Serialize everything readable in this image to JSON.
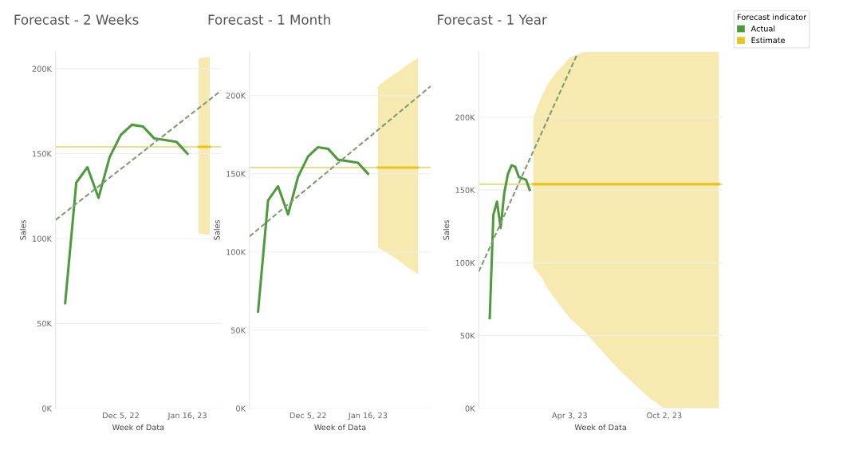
{
  "chart_data": [
    {
      "type": "line",
      "title": "Forecast - 2 Weeks",
      "xlabel": "Week of Data",
      "ylabel": "Sales",
      "xlim": [
        "2022-10-25",
        "2023-02-06"
      ],
      "xticks": [
        {
          "value": "2022-12-05",
          "label": "Dec 5, 22"
        },
        {
          "value": "2023-01-16",
          "label": "Jan 16, 23"
        }
      ],
      "ylim": [
        0,
        210000
      ],
      "yticks": [
        {
          "value": 0,
          "label": "0K"
        },
        {
          "value": 50000,
          "label": "50K"
        },
        {
          "value": 100000,
          "label": "100K"
        },
        {
          "value": 150000,
          "label": "150K"
        },
        {
          "value": 200000,
          "label": "200K"
        }
      ],
      "grid": "y",
      "ref_lines": [
        {
          "axis": "y",
          "value": 154000,
          "color": "#dfe38e"
        }
      ],
      "series": [
        {
          "color": "#4f9a3d",
          "x": [
            "2022-10-31",
            "2022-11-07",
            "2022-11-14",
            "2022-11-21",
            "2022-11-28",
            "2022-12-05",
            "2022-12-12",
            "2022-12-19",
            "2022-12-26",
            "2023-01-02",
            "2023-01-09",
            "2023-01-16"
          ],
          "values": [
            62000,
            133000,
            142000,
            124000,
            148000,
            161000,
            167000,
            166000,
            159000,
            158000,
            157000,
            150000
          ]
        },
        {
          "color": "#e8c420",
          "x": [
            "2023-01-23",
            "2023-01-30"
          ],
          "values": [
            154000,
            154000
          ],
          "lower": [
            103000,
            102000
          ],
          "upper": [
            206000,
            207000
          ]
        },
        {
          "type": "line",
          "color": "#7f9a72",
          "line_style": "dashed",
          "x": [
            "2022-10-25",
            "2023-02-06"
          ],
          "values": [
            111000,
            187000
          ]
        }
      ]
    },
    {
      "type": "line",
      "title": "Forecast - 1 Month",
      "xlabel": "Week of Data",
      "ylabel": "Sales",
      "xlim": [
        "2022-10-25",
        "2023-03-01"
      ],
      "xticks": [
        {
          "value": "2022-12-05",
          "label": "Dec 5, 22"
        },
        {
          "value": "2023-01-16",
          "label": "Jan 16, 23"
        }
      ],
      "ylim": [
        0,
        228000
      ],
      "yticks": [
        {
          "value": 0,
          "label": "0K"
        },
        {
          "value": 50000,
          "label": "50K"
        },
        {
          "value": 100000,
          "label": "100K"
        },
        {
          "value": 150000,
          "label": "150K"
        },
        {
          "value": 200000,
          "label": "200K"
        }
      ],
      "grid": "y",
      "ref_lines": [
        {
          "axis": "y",
          "value": 154000,
          "color": "#dfe38e"
        }
      ],
      "series": [
        {
          "color": "#4f9a3d",
          "x": [
            "2022-10-31",
            "2022-11-07",
            "2022-11-14",
            "2022-11-21",
            "2022-11-28",
            "2022-12-05",
            "2022-12-12",
            "2022-12-19",
            "2022-12-26",
            "2023-01-02",
            "2023-01-09",
            "2023-01-16"
          ],
          "values": [
            62000,
            133000,
            142000,
            124000,
            148000,
            161000,
            167000,
            166000,
            159000,
            158000,
            157000,
            150000
          ]
        },
        {
          "color": "#e8c420",
          "x": [
            "2023-01-23",
            "2023-01-30",
            "2023-02-06",
            "2023-02-13",
            "2023-02-20"
          ],
          "values": [
            154000,
            154000,
            154000,
            154000,
            154000
          ],
          "lower": [
            103000,
            99000,
            95000,
            90000,
            86000
          ],
          "upper": [
            206000,
            211000,
            215000,
            220000,
            224000
          ]
        },
        {
          "type": "line",
          "color": "#7f9a72",
          "line_style": "dashed",
          "x": [
            "2022-10-25",
            "2023-03-01"
          ],
          "values": [
            110000,
            206000
          ]
        }
      ]
    },
    {
      "type": "line",
      "title": "Forecast - 1 Year",
      "xlabel": "Week of Data",
      "ylabel": "Sales",
      "xlim": [
        "2022-10-10",
        "2024-01-22"
      ],
      "xticks": [
        {
          "value": "2023-04-03",
          "label": "Apr 3, 23"
        },
        {
          "value": "2023-10-02",
          "label": "Oct 2, 23"
        }
      ],
      "ylim": [
        0,
        245000
      ],
      "yticks": [
        {
          "value": 0,
          "label": "0K"
        },
        {
          "value": 50000,
          "label": "50K"
        },
        {
          "value": 100000,
          "label": "100K"
        },
        {
          "value": 150000,
          "label": "150K"
        },
        {
          "value": 200000,
          "label": "200K"
        }
      ],
      "grid": "y",
      "legend": "right",
      "legend_title": "Forecast indicator",
      "ref_lines": [
        {
          "axis": "y",
          "value": 154000,
          "color": "#dfe38e"
        }
      ],
      "series": [
        {
          "name": "Actual",
          "color": "#4f9a3d",
          "x": [
            "2022-10-31",
            "2022-11-07",
            "2022-11-14",
            "2022-11-21",
            "2022-11-28",
            "2022-12-05",
            "2022-12-12",
            "2022-12-19",
            "2022-12-26",
            "2023-01-02",
            "2023-01-09",
            "2023-01-16"
          ],
          "values": [
            62000,
            133000,
            142000,
            124000,
            148000,
            161000,
            167000,
            166000,
            159000,
            158000,
            157000,
            150000
          ]
        },
        {
          "name": "Estimate",
          "color": "#e8c420",
          "x": [
            "2023-01-23",
            "2023-02-06",
            "2023-02-20",
            "2023-03-06",
            "2023-04-03",
            "2023-05-01",
            "2023-06-05",
            "2023-07-03",
            "2023-08-07",
            "2023-09-04",
            "2023-10-02",
            "2023-11-06",
            "2023-12-04",
            "2024-01-15"
          ],
          "values": [
            154000,
            154000,
            154000,
            154000,
            154000,
            154000,
            154000,
            154000,
            154000,
            154000,
            154000,
            154000,
            154000,
            154000
          ],
          "lower": [
            97000,
            91000,
            82000,
            75000,
            62000,
            53000,
            39000,
            28000,
            16000,
            7000,
            0,
            0,
            0,
            0
          ],
          "upper": [
            200000,
            213000,
            223000,
            230000,
            241000,
            245000,
            245000,
            245000,
            245000,
            245000,
            245000,
            245000,
            245000,
            245000
          ]
        },
        {
          "type": "line",
          "color": "#7f9a72",
          "line_style": "dashed",
          "x": [
            "2022-10-10",
            "2023-04-17"
          ],
          "values": [
            94000,
            243000
          ]
        }
      ]
    }
  ]
}
